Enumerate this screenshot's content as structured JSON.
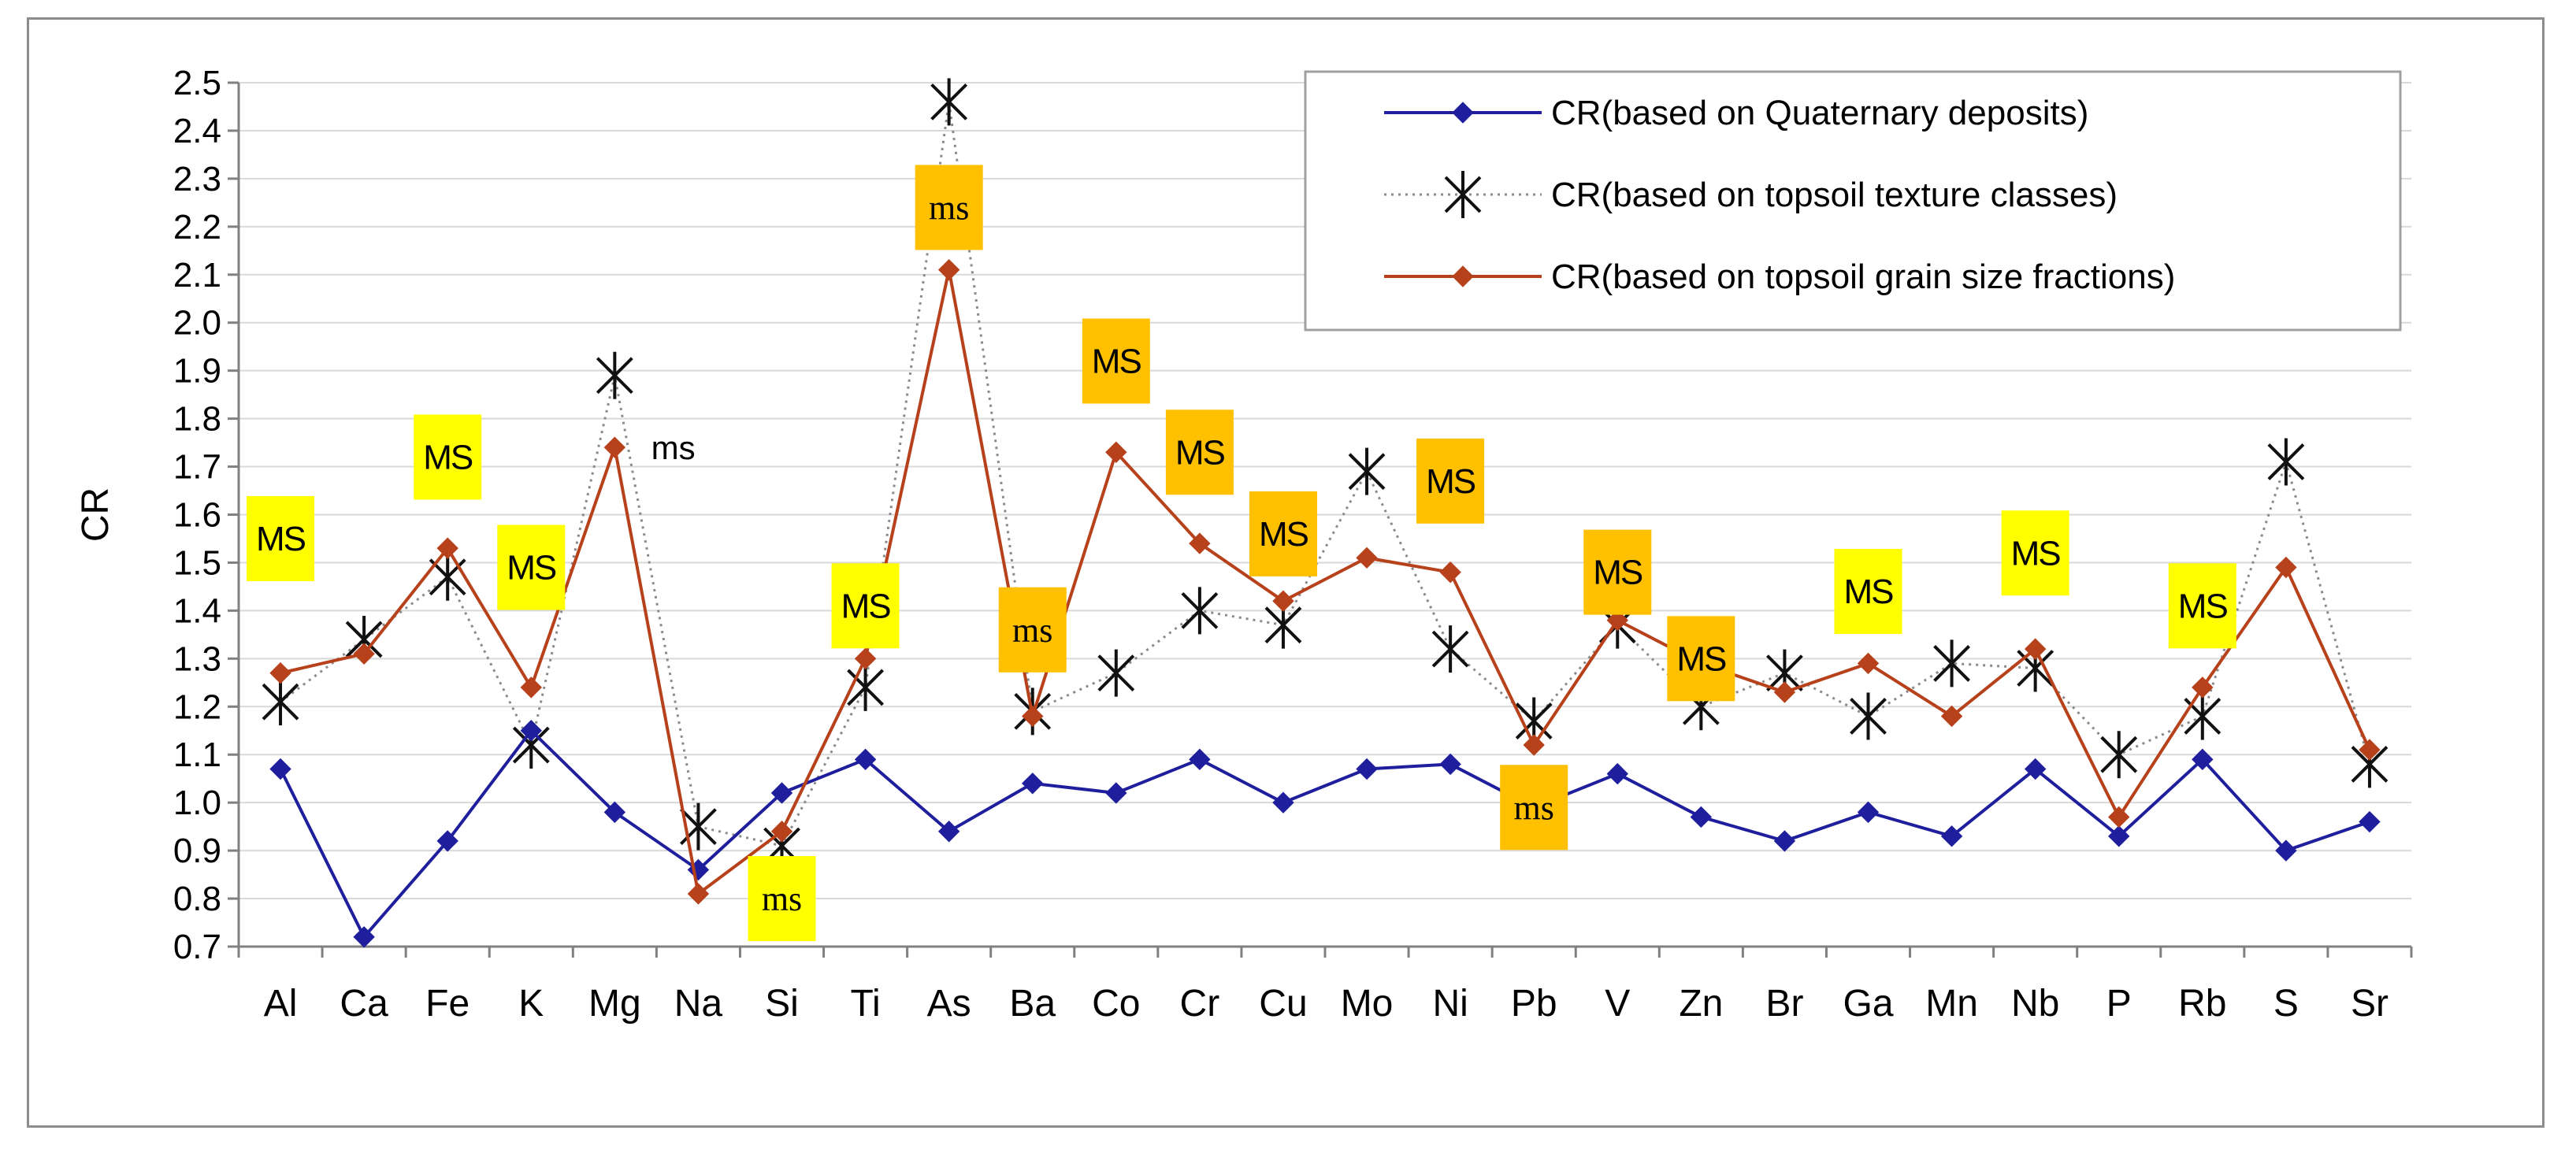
{
  "chart_data": {
    "type": "line",
    "title": "",
    "xlabel": "",
    "ylabel": "CR",
    "ylim": [
      0.7,
      2.5
    ],
    "ystep": 0.1,
    "grid": true,
    "legend_position": "top-right",
    "categories": [
      "Al",
      "Ca",
      "Fe",
      "K",
      "Mg",
      "Na",
      "Si",
      "Ti",
      "As",
      "Ba",
      "Co",
      "Cr",
      "Cu",
      "Mo",
      "Ni",
      "Pb",
      "V",
      "Zn",
      "Br",
      "Ga",
      "Mn",
      "Nb",
      "P",
      "Rb",
      "S",
      "Sr"
    ],
    "series": [
      {
        "name": "CR(based on Quaternary deposits)",
        "color": "#1f1f9e",
        "marker": "diamond",
        "line": "solid",
        "values": [
          1.07,
          0.72,
          0.92,
          1.15,
          0.98,
          0.86,
          1.02,
          1.09,
          0.94,
          1.04,
          1.02,
          1.09,
          1.0,
          1.07,
          1.08,
          0.99,
          1.06,
          0.97,
          0.92,
          0.98,
          0.93,
          1.07,
          0.93,
          1.09,
          0.9,
          0.96
        ]
      },
      {
        "name": "CR(based on topsoil texture classes)",
        "color": "#111111",
        "marker": "asterisk",
        "line": "dotted",
        "values": [
          1.21,
          1.34,
          1.47,
          1.12,
          1.89,
          0.95,
          0.91,
          1.24,
          2.46,
          1.19,
          1.27,
          1.4,
          1.37,
          1.69,
          1.32,
          1.17,
          1.37,
          1.2,
          1.27,
          1.18,
          1.29,
          1.28,
          1.1,
          1.18,
          1.71,
          1.08
        ]
      },
      {
        "name": "CR(based on topsoil grain size fractions)",
        "color": "#b7411b",
        "marker": "diamond",
        "line": "solid",
        "values": [
          1.27,
          1.31,
          1.53,
          1.24,
          1.74,
          0.81,
          0.94,
          1.3,
          2.11,
          1.18,
          1.73,
          1.54,
          1.42,
          1.51,
          1.48,
          1.12,
          1.38,
          1.29,
          1.23,
          1.29,
          1.18,
          1.32,
          0.97,
          1.24,
          1.49,
          1.11
        ]
      }
    ],
    "annotations": [
      {
        "text": "MS",
        "category": "Al",
        "y": 1.55,
        "bg": "#ffff00",
        "font": "sans"
      },
      {
        "text": "MS",
        "category": "Fe",
        "y": 1.72,
        "bg": "#ffff00",
        "font": "sans"
      },
      {
        "text": "MS",
        "category": "K",
        "y": 1.49,
        "bg": "#ffff00",
        "font": "sans"
      },
      {
        "text": "ms",
        "category": "Mg",
        "y": 1.74,
        "offset": 0.7,
        "bg": "none",
        "font": "plain"
      },
      {
        "text": "ms",
        "category": "Si",
        "y": 0.8,
        "bg": "#ffff00",
        "font": "serif"
      },
      {
        "text": "MS",
        "category": "Ti",
        "y": 1.41,
        "bg": "#ffff00",
        "font": "sans"
      },
      {
        "text": "ms",
        "category": "As",
        "y": 2.24,
        "bg": "#ffc000",
        "font": "serif"
      },
      {
        "text": "ms",
        "category": "Ba",
        "y": 1.36,
        "bg": "#ffc000",
        "font": "serif"
      },
      {
        "text": "MS",
        "category": "Co",
        "y": 1.92,
        "bg": "#ffc000",
        "font": "sans"
      },
      {
        "text": "MS",
        "category": "Cr",
        "y": 1.73,
        "bg": "#ffc000",
        "font": "sans"
      },
      {
        "text": "MS",
        "category": "Cu",
        "y": 1.56,
        "bg": "#ffc000",
        "font": "sans"
      },
      {
        "text": "MS",
        "category": "Ni",
        "y": 1.67,
        "bg": "#ffc000",
        "font": "sans"
      },
      {
        "text": "ms",
        "category": "Pb",
        "y": 0.99,
        "bg": "#ffc000",
        "font": "serif"
      },
      {
        "text": "MS",
        "category": "V",
        "y": 1.48,
        "bg": "#ffc000",
        "font": "sans"
      },
      {
        "text": "MS",
        "category": "Zn",
        "y": 1.3,
        "bg": "#ffc000",
        "font": "sans"
      },
      {
        "text": "MS",
        "category": "Ga",
        "y": 1.44,
        "bg": "#ffff00",
        "font": "sans"
      },
      {
        "text": "MS",
        "category": "Nb",
        "y": 1.52,
        "bg": "#ffff00",
        "font": "sans"
      },
      {
        "text": "MS",
        "category": "Rb",
        "y": 1.41,
        "bg": "#ffff00",
        "font": "sans"
      }
    ]
  }
}
